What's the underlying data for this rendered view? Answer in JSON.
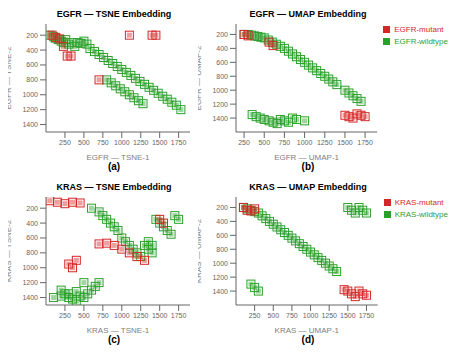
{
  "chart_data": [
    {
      "type": "scatter",
      "title": "EGFR — TSNE Embedding",
      "xlabel": "EGFR — TSNE-1",
      "ylabel": "EGFR — TSNE-2",
      "annotation": "(a)",
      "xlim": [
        0,
        1900
      ],
      "ylim": [
        1500,
        50
      ],
      "xticks": [
        250,
        500,
        750,
        1000,
        1250,
        1500,
        1750
      ],
      "yticks": [
        200,
        400,
        600,
        800,
        1000,
        1200,
        1400
      ],
      "series": [
        {
          "color": "#2ca02c",
          "marker": "square",
          "x": [
            50,
            100,
            120,
            160,
            200,
            230,
            260,
            300,
            340,
            380,
            420,
            460,
            500,
            540,
            580,
            640,
            700,
            760,
            820,
            880,
            940,
            1000,
            1060,
            1120,
            1180,
            1240,
            1300,
            1360,
            1420,
            1480,
            1540,
            1600,
            1660,
            1720,
            1780,
            800,
            860,
            920,
            980,
            1040,
            1100,
            1160,
            1220,
            1280
          ],
          "y": [
            200,
            220,
            240,
            260,
            280,
            300,
            260,
            320,
            300,
            350,
            300,
            310,
            280,
            320,
            380,
            420,
            460,
            500,
            540,
            580,
            620,
            660,
            700,
            740,
            780,
            820,
            860,
            900,
            940,
            980,
            1020,
            1060,
            1100,
            1140,
            1200,
            800,
            840,
            880,
            920,
            960,
            1000,
            1040,
            1080,
            1120
          ]
        },
        {
          "color": "#d62728",
          "marker": "square",
          "x": [
            80,
            130,
            180,
            230,
            280,
            330,
            1100,
            1400,
            1450,
            700
          ],
          "y": [
            200,
            230,
            250,
            350,
            480,
            480,
            200,
            200,
            200,
            800
          ]
        }
      ]
    },
    {
      "type": "scatter",
      "title": "EGFR — UMAP Embedding",
      "xlabel": "EGFR — UMAP-1",
      "ylabel": "EGFR — UMAP-2",
      "annotation": "(b)",
      "xlim": [
        150,
        1900
      ],
      "ylim": [
        1600,
        50
      ],
      "xticks": [
        250,
        500,
        750,
        1000,
        1250,
        1500,
        1750
      ],
      "yticks": [
        200,
        400,
        600,
        800,
        1000,
        1200,
        1400
      ],
      "legend": "upper right",
      "series": [
        {
          "name": "EGFR-wildtype",
          "color": "#2ca02c",
          "marker": "square",
          "x": [
            250,
            300,
            340,
            380,
            420,
            460,
            500,
            550,
            600,
            650,
            700,
            750,
            800,
            850,
            900,
            950,
            1000,
            1050,
            1100,
            1150,
            1200,
            1250,
            1300,
            1350,
            1400,
            1500,
            1550,
            1600,
            1650,
            1700,
            350,
            400,
            450,
            500,
            560,
            610,
            660,
            700,
            750,
            800,
            850,
            900,
            1000
          ],
          "y": [
            200,
            200,
            210,
            220,
            230,
            240,
            250,
            280,
            310,
            340,
            370,
            400,
            440,
            480,
            520,
            560,
            600,
            640,
            680,
            720,
            760,
            800,
            840,
            880,
            920,
            1000,
            1040,
            1080,
            1120,
            1160,
            1350,
            1380,
            1400,
            1420,
            1440,
            1460,
            1480,
            1420,
            1440,
            1460,
            1400,
            1420,
            1440
          ]
        },
        {
          "name": "EGFR-mutant",
          "color": "#d62728",
          "marker": "square",
          "x": [
            250,
            300,
            560,
            610,
            1500,
            1550,
            1600,
            1650,
            1700,
            1750
          ],
          "y": [
            200,
            220,
            310,
            360,
            1360,
            1380,
            1400,
            1340,
            1360,
            1380
          ]
        }
      ]
    },
    {
      "type": "scatter",
      "title": "KRAS — TSNE Embedding",
      "xlabel": "KRAS — TSNE-1",
      "ylabel": "KRAS — TSNE-2",
      "annotation": "(c)",
      "xlim": [
        0,
        1900
      ],
      "ylim": [
        1500,
        50
      ],
      "xticks": [
        250,
        500,
        750,
        1000,
        1250,
        1500,
        1750
      ],
      "yticks": [
        200,
        400,
        600,
        800,
        1000,
        1200,
        1400
      ],
      "series": [
        {
          "color": "#2ca02c",
          "marker": "square",
          "x": [
            100,
            200,
            300,
            400,
            500,
            600,
            700,
            750,
            800,
            850,
            900,
            950,
            1000,
            1050,
            1100,
            1150,
            1200,
            1250,
            1300,
            1350,
            1400,
            1450,
            1500,
            1550,
            1600,
            1650,
            1700,
            1750,
            200,
            250,
            300,
            350,
            400,
            450,
            500,
            550,
            600,
            650,
            700,
            1350,
            1400
          ],
          "y": [
            1400,
            1380,
            1350,
            1320,
            1200,
            200,
            250,
            300,
            350,
            400,
            450,
            500,
            600,
            650,
            700,
            750,
            800,
            850,
            700,
            750,
            800,
            350,
            400,
            450,
            500,
            550,
            300,
            350,
            1300,
            1350,
            1400,
            1420,
            1450,
            1380,
            1400,
            1350,
            1300,
            1250,
            1200,
            650,
            700
          ]
        },
        {
          "color": "#d62728",
          "marker": "square",
          "x": [
            50,
            150,
            250,
            350,
            450,
            900,
            1000,
            1100,
            1200,
            1300,
            300,
            350,
            400,
            700,
            800,
            1500,
            1550
          ],
          "y": [
            100,
            120,
            140,
            120,
            130,
            700,
            750,
            800,
            850,
            900,
            950,
            1000,
            900,
            680,
            670,
            350,
            400
          ]
        }
      ]
    },
    {
      "type": "scatter",
      "title": "KRAS — UMAP Embedding",
      "xlabel": "KRAS — UMAP-1",
      "ylabel": "KRAS — UMAP-2",
      "annotation": "(d)",
      "xlim": [
        0,
        1900
      ],
      "ylim": [
        1600,
        50
      ],
      "xticks": [
        250,
        500,
        750,
        1000,
        1250,
        1500,
        1750
      ],
      "yticks": [
        200,
        400,
        600,
        800,
        1000,
        1200,
        1400
      ],
      "legend": "upper right",
      "series": [
        {
          "name": "KRAS-wildtype",
          "color": "#2ca02c",
          "marker": "square",
          "x": [
            100,
            150,
            200,
            250,
            300,
            350,
            400,
            450,
            500,
            550,
            600,
            650,
            700,
            750,
            800,
            850,
            900,
            950,
            1000,
            1050,
            1100,
            1150,
            1200,
            1250,
            1300,
            1350,
            1500,
            1550,
            1600,
            1650,
            1700,
            1750,
            200,
            250,
            300
          ],
          "y": [
            200,
            220,
            240,
            260,
            280,
            320,
            360,
            400,
            440,
            480,
            520,
            560,
            600,
            640,
            680,
            720,
            760,
            800,
            840,
            880,
            920,
            960,
            1000,
            1040,
            1080,
            1120,
            200,
            240,
            280,
            200,
            240,
            280,
            1300,
            1350,
            1400
          ]
        },
        {
          "name": "KRAS-mutant",
          "color": "#d62728",
          "marker": "square",
          "x": [
            100,
            150,
            200,
            250,
            1450,
            1500,
            1550,
            1600,
            1650,
            1700,
            1750
          ],
          "y": [
            200,
            240,
            250,
            220,
            1380,
            1400,
            1440,
            1480,
            1400,
            1440,
            1460
          ]
        }
      ]
    }
  ]
}
